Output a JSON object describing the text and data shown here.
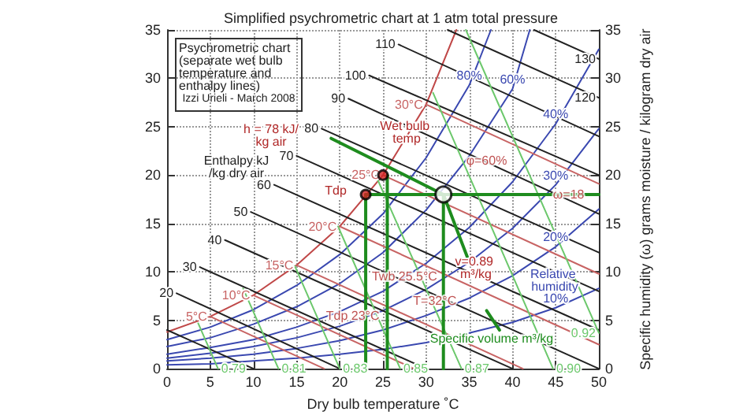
{
  "chart_data": {
    "type": "line",
    "title": "Simplified psychrometric chart at 1 atm total pressure",
    "xlabel": "Dry bulb temperature ˚C",
    "y2label": "Specific humidity (ω) grams moisture / kilogram dry air",
    "xlim": [
      0,
      50
    ],
    "xticks": [
      0,
      5,
      10,
      15,
      20,
      25,
      30,
      35,
      40,
      45,
      50
    ],
    "ylim": [
      0,
      35
    ],
    "yticks": [
      0,
      5,
      10,
      15,
      20,
      25,
      30,
      35
    ],
    "y2lim": [
      0,
      35
    ],
    "y2ticks": [
      0,
      5,
      10,
      15,
      20,
      25,
      30,
      35
    ],
    "grid": true,
    "legend": false,
    "marker": "none",
    "series": [
      {
        "color": "#c04848",
        "x": [
          0,
          5,
          10,
          15,
          20,
          25,
          30,
          33.5
        ],
        "values": [
          3.8,
          5.4,
          7.6,
          10.7,
          14.7,
          20,
          27.3,
          35
        ]
      },
      {
        "name": "80%",
        "color": "#3a48b0",
        "x": [
          37.5,
          35,
          30,
          25,
          20,
          15,
          10,
          5,
          0
        ],
        "values": [
          35,
          29.3,
          21.8,
          16,
          11.8,
          8.6,
          6.1,
          4.3,
          3
        ]
      },
      {
        "name": "60%",
        "color": "#3a48b0",
        "x": [
          42,
          40,
          35,
          30,
          25,
          20,
          15,
          10,
          5,
          0
        ],
        "values": [
          35,
          28.9,
          22,
          16.4,
          12,
          8.8,
          6.4,
          4.6,
          3.2,
          2.3
        ]
      },
      {
        "name": "40%",
        "color": "#3a48b0",
        "x": [
          50,
          45,
          40,
          35,
          30,
          25,
          20,
          15,
          10,
          5,
          0
        ],
        "values": [
          33,
          25.3,
          19.3,
          14.6,
          10.9,
          8,
          5.9,
          4.3,
          3,
          2.2,
          1.5
        ]
      },
      {
        "name": "30%",
        "color": "#3a48b0",
        "x": [
          50,
          45,
          40,
          35,
          30,
          25,
          20,
          15,
          10,
          5,
          0
        ],
        "values": [
          24.8,
          19,
          14.5,
          11,
          8.2,
          6,
          4.4,
          3.2,
          2.3,
          1.6,
          1.1
        ]
      },
      {
        "name": "20%",
        "color": "#3a48b0",
        "x": [
          50,
          45,
          40,
          35,
          30,
          25,
          20,
          15,
          10,
          5,
          0
        ],
        "values": [
          16.5,
          12.6,
          9.6,
          7.3,
          5.5,
          4,
          2.9,
          2.1,
          1.5,
          1.1,
          0.8
        ]
      },
      {
        "name": "10%",
        "color": "#3a48b0",
        "x": [
          50,
          45,
          40,
          35,
          30,
          25,
          20,
          15,
          10,
          5,
          0
        ],
        "values": [
          8.3,
          6.3,
          4.8,
          3.7,
          2.7,
          2,
          1.5,
          1.1,
          0.8,
          0.5,
          0.4
        ]
      },
      {
        "color": "#222222",
        "x": [
          0,
          10
        ],
        "values": [
          4,
          0
        ]
      },
      {
        "name": "20",
        "color": "#222222",
        "x": [
          1.1,
          20
        ],
        "values": [
          7.8,
          0
        ]
      },
      {
        "name": "30",
        "color": "#222222",
        "x": [
          3.8,
          30
        ],
        "values": [
          10.5,
          0
        ]
      },
      {
        "name": "40",
        "color": "#222222",
        "x": [
          6.7,
          40
        ],
        "values": [
          13.3,
          0
        ]
      },
      {
        "name": "50",
        "color": "#222222",
        "x": [
          9.7,
          50
        ],
        "values": [
          16.2,
          0
        ]
      },
      {
        "name": "60",
        "color": "#222222",
        "x": [
          12.4,
          50
        ],
        "values": [
          19,
          4
        ]
      },
      {
        "name": "70",
        "color": "#222222",
        "x": [
          15,
          50
        ],
        "values": [
          22,
          8
        ]
      },
      {
        "name": "80",
        "color": "#222222",
        "x": [
          17.9,
          50
        ],
        "values": [
          24.8,
          12
        ]
      },
      {
        "name": "90",
        "color": "#222222",
        "x": [
          21,
          50
        ],
        "values": [
          27.9,
          16
        ]
      },
      {
        "name": "100",
        "color": "#222222",
        "x": [
          23.4,
          50
        ],
        "values": [
          30.3,
          20
        ]
      },
      {
        "name": "110",
        "color": "#222222",
        "x": [
          26.8,
          50
        ],
        "values": [
          33.5,
          24
        ]
      },
      {
        "name": "120",
        "color": "#222222",
        "x": [
          50,
          32.5
        ],
        "values": [
          28,
          35
        ]
      },
      {
        "name": "130",
        "color": "#222222",
        "x": [
          50,
          42.5
        ],
        "values": [
          32,
          35
        ]
      },
      {
        "name": "5°C",
        "color": "#c86464",
        "x": [
          5,
          18.2
        ],
        "values": [
          5.4,
          0
        ]
      },
      {
        "name": "10°C",
        "color": "#c86464",
        "x": [
          10,
          28.6
        ],
        "values": [
          7.6,
          0
        ]
      },
      {
        "name": "15°C",
        "color": "#c86464",
        "x": [
          15,
          41.2
        ],
        "values": [
          10.7,
          0
        ]
      },
      {
        "name": "20°C",
        "color": "#c86464",
        "x": [
          20,
          50
        ],
        "values": [
          14.7,
          2.5
        ]
      },
      {
        "name": "25°C",
        "color": "#c86464",
        "x": [
          25,
          50
        ],
        "values": [
          20,
          9.8
        ]
      },
      {
        "name": "30°C",
        "color": "#c86464",
        "x": [
          30,
          50
        ],
        "values": [
          27.3,
          19.1
        ]
      },
      {
        "name": "0.79",
        "color": "#6cc86c",
        "x": [
          5.9,
          3.6
        ],
        "values": [
          0,
          4.7
        ]
      },
      {
        "name": "0.81",
        "color": "#6cc86c",
        "x": [
          12.9,
          8.8
        ],
        "values": [
          0,
          8.3
        ]
      },
      {
        "name": "0.83",
        "color": "#6cc86c",
        "x": [
          20,
          14.8
        ],
        "values": [
          0,
          10.6
        ]
      },
      {
        "name": "0.85",
        "color": "#6cc86c",
        "x": [
          27,
          19.8
        ],
        "values": [
          0,
          14.7
        ]
      },
      {
        "name": "0.87",
        "color": "#6cc86c",
        "x": [
          34.1,
          24.4
        ],
        "values": [
          0,
          19.5
        ]
      },
      {
        "name": "0.90",
        "color": "#6cc86c",
        "x": [
          44.7,
          30.8
        ],
        "values": [
          0,
          28.5
        ]
      },
      {
        "name": "0.92",
        "color": "#6cc86c",
        "x": [
          50,
          34.6
        ],
        "values": [
          3.7,
          35
        ]
      },
      {
        "color": "#1e8c1e",
        "x": [
          23,
          23
        ],
        "values": [
          0,
          18
        ]
      },
      {
        "color": "#1e8c1e",
        "x": [
          25.5,
          25.5
        ],
        "values": [
          0,
          20
        ]
      },
      {
        "color": "#1e8c1e",
        "x": [
          32,
          32
        ],
        "values": [
          0,
          18
        ]
      },
      {
        "color": "#1e8c1e",
        "x": [
          23,
          50
        ],
        "values": [
          18,
          18
        ]
      },
      {
        "color": "#1e8c1e",
        "x": [
          19,
          32
        ],
        "values": [
          23.8,
          18
        ]
      },
      {
        "color": "#1e8c1e",
        "x": [
          32,
          35
        ],
        "values": [
          18,
          11
        ]
      },
      {
        "color": "#1e8c1e",
        "x": [
          37,
          38.5
        ],
        "values": [
          6,
          4
        ]
      },
      {
        "type": "scatter",
        "marker": "circle",
        "color": "#d02020",
        "x": [
          25,
          23
        ],
        "values": [
          20,
          18
        ]
      },
      {
        "type": "scatter",
        "marker": "circle",
        "color": "#ffffff",
        "x": [
          32
        ],
        "values": [
          18
        ]
      }
    ],
    "annotations": [
      "Psychrometric chart (separate wet bulb temperature and enthalpy lines)",
      "Izzi Urieli - March 2008",
      "Enthalpy kJ/kg dry air",
      "h = 78 kJ/kg air",
      "Tdp",
      "Relative humidity",
      "Specific volume m³/kg",
      "Wet bulb temp",
      "v=0.89 m³/kg",
      {
        "text": "φ=60%",
        "x": 37,
        "y": 21.5
      },
      {
        "text": "ω=18",
        "x": 46.5,
        "y": 18
      },
      {
        "text": "Twb 25.5°C",
        "x": 27.5,
        "y": 9.5
      },
      {
        "text": "Tdp 23°C",
        "x": 21.5,
        "y": 5.5
      },
      {
        "text": "T=32°C",
        "x": 31,
        "y": 7
      }
    ]
  }
}
